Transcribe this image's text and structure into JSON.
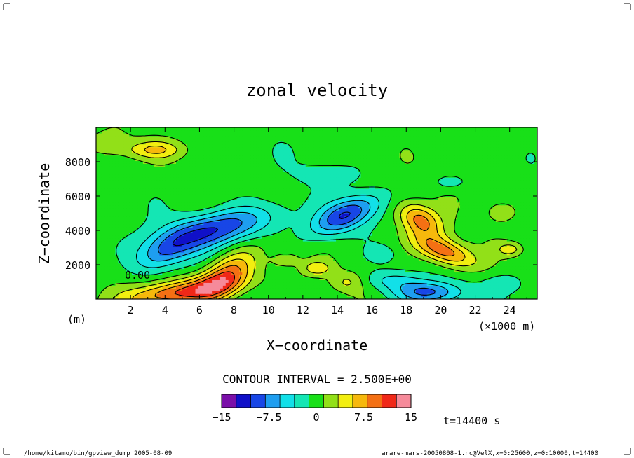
{
  "chart_data": {
    "type": "heatmap",
    "title": "zonal velocity",
    "xlabel": "X−coordinate",
    "ylabel": "Z−coordinate",
    "x_unit": "(×1000 m)",
    "y_unit": "(m)",
    "xlim": [
      0,
      25.6
    ],
    "ylim": [
      0,
      10000
    ],
    "x_ticks": [
      2,
      4,
      6,
      8,
      10,
      12,
      14,
      16,
      18,
      20,
      22,
      24
    ],
    "y_ticks": [
      2000,
      4000,
      6000,
      8000
    ],
    "contour_interval_text": "CONTOUR INTERVAL = 2.500E+00",
    "contour_label": "0.00",
    "time_text": "t=14400 s",
    "colorbar": {
      "levels": [
        -15,
        -12.5,
        -10,
        -7.5,
        -5,
        -2.5,
        0,
        2.5,
        5,
        7.5,
        10,
        12.5,
        15
      ],
      "tick_labels": [
        "−15",
        "−7.5",
        "0",
        "7.5",
        "15"
      ],
      "colors": [
        "#7a0fa8",
        "#1010c8",
        "#1846e6",
        "#1e9ef0",
        "#12e0e8",
        "#14e6b4",
        "#18e018",
        "#92e018",
        "#f2ee10",
        "#f6b80c",
        "#f47014",
        "#f02818",
        "#f68a9a"
      ]
    },
    "features": [
      {
        "x": 7.0,
        "z": 4100,
        "sx": 2.4,
        "sz": 700,
        "value": -11,
        "angle": 13
      },
      {
        "x": 3.9,
        "z": 2700,
        "sx": 1.3,
        "sz": 650,
        "value": -7,
        "angle": 25
      },
      {
        "x": 14.5,
        "z": 4900,
        "sx": 1.5,
        "sz": 600,
        "value": -11,
        "angle": 24
      },
      {
        "x": 19.3,
        "z": 400,
        "sx": 1.4,
        "sz": 450,
        "value": -9,
        "angle": 0
      },
      {
        "x": 17.0,
        "z": 1100,
        "sx": 1.2,
        "sz": 400,
        "value": -4,
        "angle": 0
      },
      {
        "x": 7.5,
        "z": 1300,
        "sx": 1.3,
        "sz": 700,
        "value": 11,
        "angle": 35
      },
      {
        "x": 4.8,
        "z": 400,
        "sx": 2.3,
        "sz": 500,
        "value": 11,
        "angle": 8
      },
      {
        "x": 20.2,
        "z": 2800,
        "sx": 1.3,
        "sz": 500,
        "value": 11,
        "angle": -20
      },
      {
        "x": 18.8,
        "z": 4600,
        "sx": 1.0,
        "sz": 600,
        "value": 10,
        "angle": -30
      },
      {
        "x": 3.4,
        "z": 8700,
        "sx": 1.1,
        "sz": 350,
        "value": 6,
        "angle": 0
      },
      {
        "x": 12.8,
        "z": 1800,
        "sx": 0.6,
        "sz": 300,
        "value": 5,
        "angle": 0
      },
      {
        "x": 11.0,
        "z": 2300,
        "sx": 0.5,
        "sz": 250,
        "value": 4,
        "angle": 0
      },
      {
        "x": 24.0,
        "z": 2900,
        "sx": 0.5,
        "sz": 250,
        "value": 5,
        "angle": 0
      },
      {
        "x": 14.6,
        "z": 1000,
        "sx": 0.7,
        "sz": 400,
        "value": 4,
        "angle": 0
      },
      {
        "x": 23.5,
        "z": 5100,
        "sx": 0.5,
        "sz": 350,
        "value": 4,
        "angle": 0
      },
      {
        "x": 0.8,
        "z": 9000,
        "sx": 0.9,
        "sz": 600,
        "value": 3,
        "angle": 0
      },
      {
        "x": 13.5,
        "z": 7300,
        "sx": 1.2,
        "sz": 400,
        "value": -3,
        "angle": 0
      },
      {
        "x": 16.6,
        "z": 2600,
        "sx": 0.5,
        "sz": 300,
        "value": -3,
        "angle": 0
      },
      {
        "x": 23.8,
        "z": 900,
        "sx": 0.8,
        "sz": 400,
        "value": -3,
        "angle": 0
      },
      {
        "x": 20.5,
        "z": 6800,
        "sx": 0.7,
        "sz": 300,
        "value": -3,
        "angle": 0
      }
    ]
  },
  "footer": {
    "left": "/home/kitamo/bin/gpview_dump   2005-08-09",
    "right": "arare-mars-20050808-1.nc@VelX,x=0:25600,z=0:10000,t=14400"
  }
}
